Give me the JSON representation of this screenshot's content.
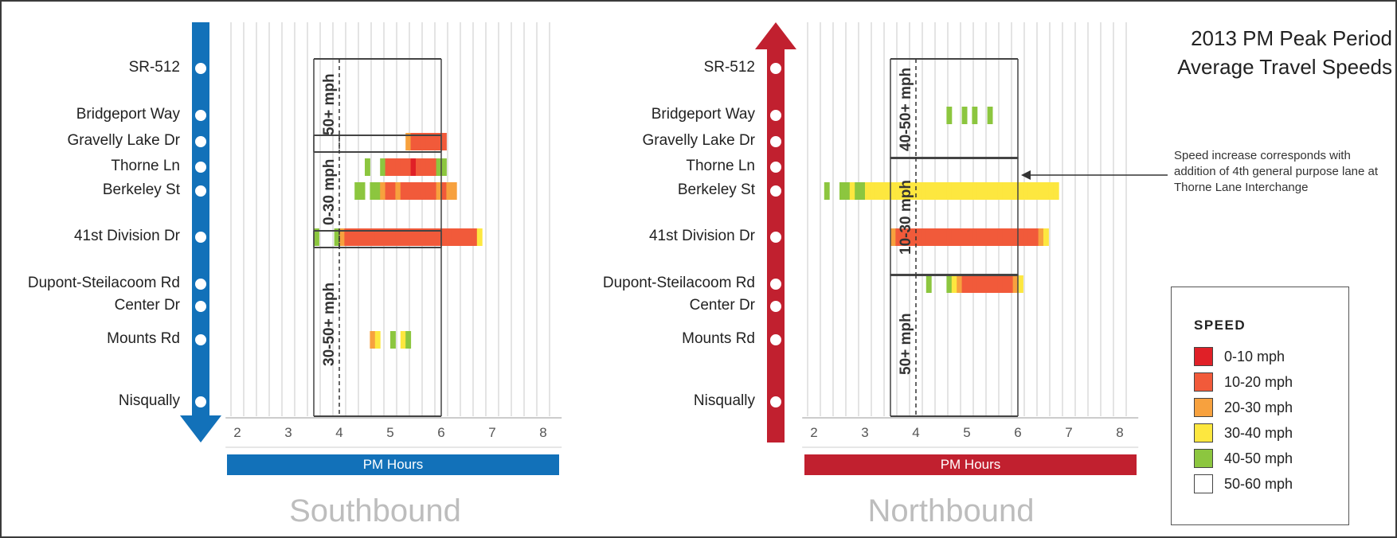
{
  "title": [
    "2013 PM Peak Period",
    "Average Travel Speeds"
  ],
  "annotation": "Speed increase corresponds with addition of 4th general purpose lane at Thorne Lane Interchange",
  "legend": {
    "title": "SPEED",
    "items": [
      {
        "label": "0-10 mph",
        "color": "#e02027"
      },
      {
        "label": "10-20 mph",
        "color": "#f15a3a"
      },
      {
        "label": "20-30 mph",
        "color": "#f7a13e"
      },
      {
        "label": "30-40 mph",
        "color": "#fde73f"
      },
      {
        "label": "40-50 mph",
        "color": "#8cc63f"
      },
      {
        "label": "50-60 mph",
        "color": "#ffffff"
      }
    ]
  },
  "chart_data": [
    {
      "type": "heatmap",
      "direction": "Southbound",
      "xlabel": "PM Hours",
      "x_ticks": [
        2,
        3,
        4,
        5,
        6,
        7,
        8
      ],
      "xlim": [
        1.8,
        8.3
      ],
      "stations": [
        "SR-512",
        "Bridgeport Way",
        "Gravelly Lake Dr",
        "Thorne Ln",
        "Berkeley St",
        "41st Division Dr",
        "Dupont-Steilacoom Rd",
        "Center Dr",
        "Mounts Rd",
        "Nisqually"
      ],
      "colors": {
        "1": "#e02027",
        "2": "#f15a3a",
        "3": "#f7a13e",
        "4": "#fde73f",
        "5": "#8cc63f"
      },
      "cell_width_hours": 0.1,
      "zones": [
        {
          "label": "50+ mph",
          "from_station": "SR-512",
          "to_station": "Gravelly Lake Dr",
          "start": 3.5,
          "end": 6.0
        },
        {
          "label": "0-30 mph",
          "from_station": "Gravelly Lake Dr",
          "to_station": "41st Division Dr",
          "start": 3.5,
          "end": 6.0
        },
        {
          "label": "30-50+ mph",
          "from_station": "41st Division Dr",
          "to_station": "Nisqually",
          "start": 3.5,
          "end": 6.0
        }
      ],
      "rows": [
        {
          "station": "Gravelly Lake Dr",
          "start": 5.3,
          "codes": [
            3,
            2,
            2,
            2,
            2,
            2,
            2,
            2
          ]
        },
        {
          "station": "Thorne Ln",
          "start": 4.5,
          "codes": [
            5,
            0,
            0,
            5,
            2,
            2,
            2,
            2,
            2,
            1,
            2,
            2,
            2,
            2,
            5,
            5
          ]
        },
        {
          "station": "Berkeley St",
          "start": 4.3,
          "codes": [
            5,
            5,
            0,
            5,
            5,
            3,
            2,
            2,
            3,
            2,
            2,
            2,
            2,
            2,
            2,
            2,
            3,
            2,
            3,
            3
          ]
        },
        {
          "station": "41st Division Dr",
          "start": 3.5,
          "codes": [
            5,
            0,
            0,
            0,
            5,
            3,
            2,
            2,
            2,
            2,
            2,
            2,
            2,
            2,
            2,
            2,
            2,
            2,
            2,
            2,
            2,
            2,
            2,
            2,
            2,
            2,
            2,
            2,
            2,
            2,
            2,
            2,
            4
          ]
        },
        {
          "station": "Mounts Rd",
          "start": 4.6,
          "codes": [
            3,
            4,
            0,
            0,
            5,
            0,
            4,
            5
          ]
        }
      ]
    },
    {
      "type": "heatmap",
      "direction": "Northbound",
      "xlabel": "PM Hours",
      "x_ticks": [
        2,
        3,
        4,
        5,
        6,
        7,
        8
      ],
      "xlim": [
        1.8,
        8.3
      ],
      "stations": [
        "SR-512",
        "Bridgeport Way",
        "Gravelly Lake Dr",
        "Thorne Ln",
        "Berkeley St",
        "41st Division Dr",
        "Dupont-Steilacoom Rd",
        "Center Dr",
        "Mounts Rd",
        "Nisqually"
      ],
      "colors": {
        "1": "#e02027",
        "2": "#f15a3a",
        "3": "#f7a13e",
        "4": "#fde73f",
        "5": "#8cc63f"
      },
      "cell_width_hours": 0.1,
      "zones": [
        {
          "label": "40-50+ mph",
          "from_station": "SR-512",
          "to_station": "Thorne Ln",
          "start": 3.5,
          "end": 6.0
        },
        {
          "label": "10-30 mph",
          "from_station": "Thorne Ln",
          "to_station": "Dupont-Steilacoom Rd",
          "start": 3.5,
          "end": 6.0
        },
        {
          "label": "50+ mph",
          "from_station": "Dupont-Steilacoom Rd",
          "to_station": "Nisqually",
          "start": 3.5,
          "end": 6.0
        }
      ],
      "rows": [
        {
          "station": "Bridgeport Way",
          "start": 4.6,
          "codes": [
            5,
            0,
            0,
            5,
            0,
            5,
            0,
            0,
            5
          ]
        },
        {
          "station": "Berkeley St",
          "start": 2.2,
          "codes": [
            5,
            0,
            0,
            5,
            5,
            4,
            5,
            5,
            4,
            4,
            4,
            4,
            4,
            4,
            4,
            4,
            4,
            4,
            4,
            4,
            4,
            4,
            4,
            4,
            4,
            4,
            4,
            4,
            4,
            4,
            4,
            4,
            4,
            4,
            4,
            4,
            4,
            4,
            4,
            4,
            4,
            4,
            4,
            4,
            4,
            4
          ]
        },
        {
          "station": "41st Division Dr",
          "start": 3.5,
          "codes": [
            3,
            2,
            2,
            2,
            2,
            2,
            2,
            2,
            2,
            2,
            2,
            2,
            2,
            2,
            2,
            2,
            2,
            2,
            2,
            2,
            2,
            2,
            2,
            2,
            2,
            2,
            2,
            2,
            2,
            3,
            4
          ]
        },
        {
          "station": "Dupont-Steilacoom Rd",
          "start": 4.2,
          "codes": [
            5,
            0,
            0,
            0,
            5,
            4,
            3,
            2,
            2,
            2,
            2,
            2,
            2,
            2,
            2,
            2,
            2,
            3,
            4
          ]
        }
      ]
    }
  ]
}
